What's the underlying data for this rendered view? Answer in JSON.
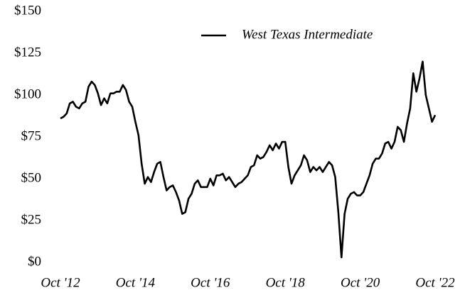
{
  "chart_data": {
    "type": "line",
    "x": [
      "2012-10",
      "2012-11",
      "2012-12",
      "2013-01",
      "2013-02",
      "2013-03",
      "2013-04",
      "2013-05",
      "2013-06",
      "2013-07",
      "2013-08",
      "2013-09",
      "2013-10",
      "2013-11",
      "2013-12",
      "2014-01",
      "2014-02",
      "2014-03",
      "2014-04",
      "2014-05",
      "2014-06",
      "2014-07",
      "2014-08",
      "2014-09",
      "2014-10",
      "2014-11",
      "2014-12",
      "2015-01",
      "2015-02",
      "2015-03",
      "2015-04",
      "2015-05",
      "2015-06",
      "2015-07",
      "2015-08",
      "2015-09",
      "2015-10",
      "2015-11",
      "2015-12",
      "2016-01",
      "2016-02",
      "2016-03",
      "2016-04",
      "2016-05",
      "2016-06",
      "2016-07",
      "2016-08",
      "2016-09",
      "2016-10",
      "2016-11",
      "2016-12",
      "2017-01",
      "2017-02",
      "2017-03",
      "2017-04",
      "2017-05",
      "2017-06",
      "2017-07",
      "2017-08",
      "2017-09",
      "2017-10",
      "2017-11",
      "2017-12",
      "2018-01",
      "2018-02",
      "2018-03",
      "2018-04",
      "2018-05",
      "2018-06",
      "2018-07",
      "2018-08",
      "2018-09",
      "2018-10",
      "2018-11",
      "2018-12",
      "2019-01",
      "2019-02",
      "2019-03",
      "2019-04",
      "2019-05",
      "2019-06",
      "2019-07",
      "2019-08",
      "2019-09",
      "2019-10",
      "2019-11",
      "2019-12",
      "2020-01",
      "2020-02",
      "2020-03",
      "2020-04",
      "2020-05",
      "2020-06",
      "2020-07",
      "2020-08",
      "2020-09",
      "2020-10",
      "2020-11",
      "2020-12",
      "2021-01",
      "2021-02",
      "2021-03",
      "2021-04",
      "2021-05",
      "2021-06",
      "2021-07",
      "2021-08",
      "2021-09",
      "2021-10",
      "2021-11",
      "2021-12",
      "2022-01",
      "2022-02",
      "2022-03",
      "2022-04",
      "2022-05",
      "2022-06",
      "2022-07",
      "2022-08",
      "2022-09",
      "2022-10"
    ],
    "series": [
      {
        "name": "West Texas Intermediate",
        "color": "#000000",
        "values": [
          86,
          87,
          89,
          95,
          96,
          93,
          92,
          95,
          96,
          105,
          108,
          106,
          101,
          94,
          98,
          95,
          101,
          101,
          102,
          102,
          106,
          103,
          96,
          93,
          84,
          76,
          59,
          47,
          51,
          48,
          54,
          59,
          60,
          51,
          43,
          45,
          46,
          42,
          37,
          29,
          30,
          38,
          41,
          47,
          49,
          45,
          45,
          45,
          50,
          46,
          52,
          52,
          53,
          49,
          51,
          48,
          45,
          47,
          48,
          50,
          52,
          57,
          58,
          64,
          62,
          63,
          66,
          70,
          67,
          71,
          68,
          72,
          72,
          57,
          47,
          52,
          55,
          58,
          64,
          61,
          54,
          57,
          55,
          57,
          54,
          57,
          60,
          58,
          51,
          30,
          3,
          29,
          38,
          41,
          42,
          40,
          40,
          42,
          47,
          52,
          59,
          62,
          62,
          65,
          71,
          72,
          68,
          72,
          81,
          79,
          72,
          83,
          92,
          113,
          102,
          110,
          120,
          100,
          92,
          84,
          88
        ]
      }
    ],
    "xlim": [
      "2012-10",
      "2022-10"
    ],
    "xticks": [
      {
        "value": "2012-10",
        "label": "Oct '12"
      },
      {
        "value": "2014-10",
        "label": "Oct '14"
      },
      {
        "value": "2016-10",
        "label": "Oct '16"
      },
      {
        "value": "2018-10",
        "label": "Oct '18"
      },
      {
        "value": "2020-10",
        "label": "Oct '20"
      },
      {
        "value": "2022-10",
        "label": "Oct '22"
      }
    ],
    "ylim": [
      0,
      150
    ],
    "yticks": [
      {
        "value": 0,
        "label": "$0"
      },
      {
        "value": 25,
        "label": "$25"
      },
      {
        "value": 50,
        "label": "$50"
      },
      {
        "value": 75,
        "label": "$75"
      },
      {
        "value": 100,
        "label": "$100"
      },
      {
        "value": 125,
        "label": "$125"
      },
      {
        "value": 150,
        "label": "$150"
      }
    ],
    "grid": false,
    "legend": "top-right"
  }
}
